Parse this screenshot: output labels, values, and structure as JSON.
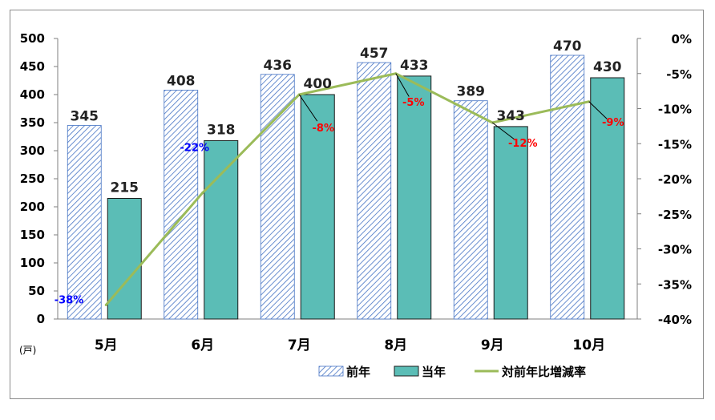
{
  "chart_data": {
    "type": "bar",
    "categories": [
      "5月",
      "6月",
      "7月",
      "8月",
      "9月",
      "10月"
    ],
    "series": [
      {
        "name": "前年",
        "values": [
          345,
          408,
          436,
          457,
          389,
          470
        ],
        "color": "#4472c4",
        "pattern": "diagonal-hatch"
      },
      {
        "name": "当年",
        "values": [
          215,
          318,
          400,
          433,
          343,
          430
        ],
        "color": "#5bbdb6",
        "edge": "#1a1a1a"
      },
      {
        "name": "対前年比増減率",
        "type": "line",
        "axis": "right",
        "values": [
          -38,
          -22,
          -8,
          -5,
          -12,
          -9
        ],
        "labels": [
          "-38%",
          "-22%",
          "-8%",
          "-5%",
          "-12%",
          "-9%"
        ],
        "color": "#9bbb59"
      }
    ],
    "label_colors": [
      "#0000ff",
      "#0000ff",
      "#ff0000",
      "#ff0000",
      "#ff0000",
      "#ff0000"
    ],
    "y_left": {
      "min": 0,
      "max": 500,
      "step": 50,
      "unit": "(戸)"
    },
    "y_right": {
      "min": -40,
      "max": 0,
      "step": 5,
      "suffix": "%"
    },
    "grid": false,
    "legend_position": "bottom-right"
  }
}
